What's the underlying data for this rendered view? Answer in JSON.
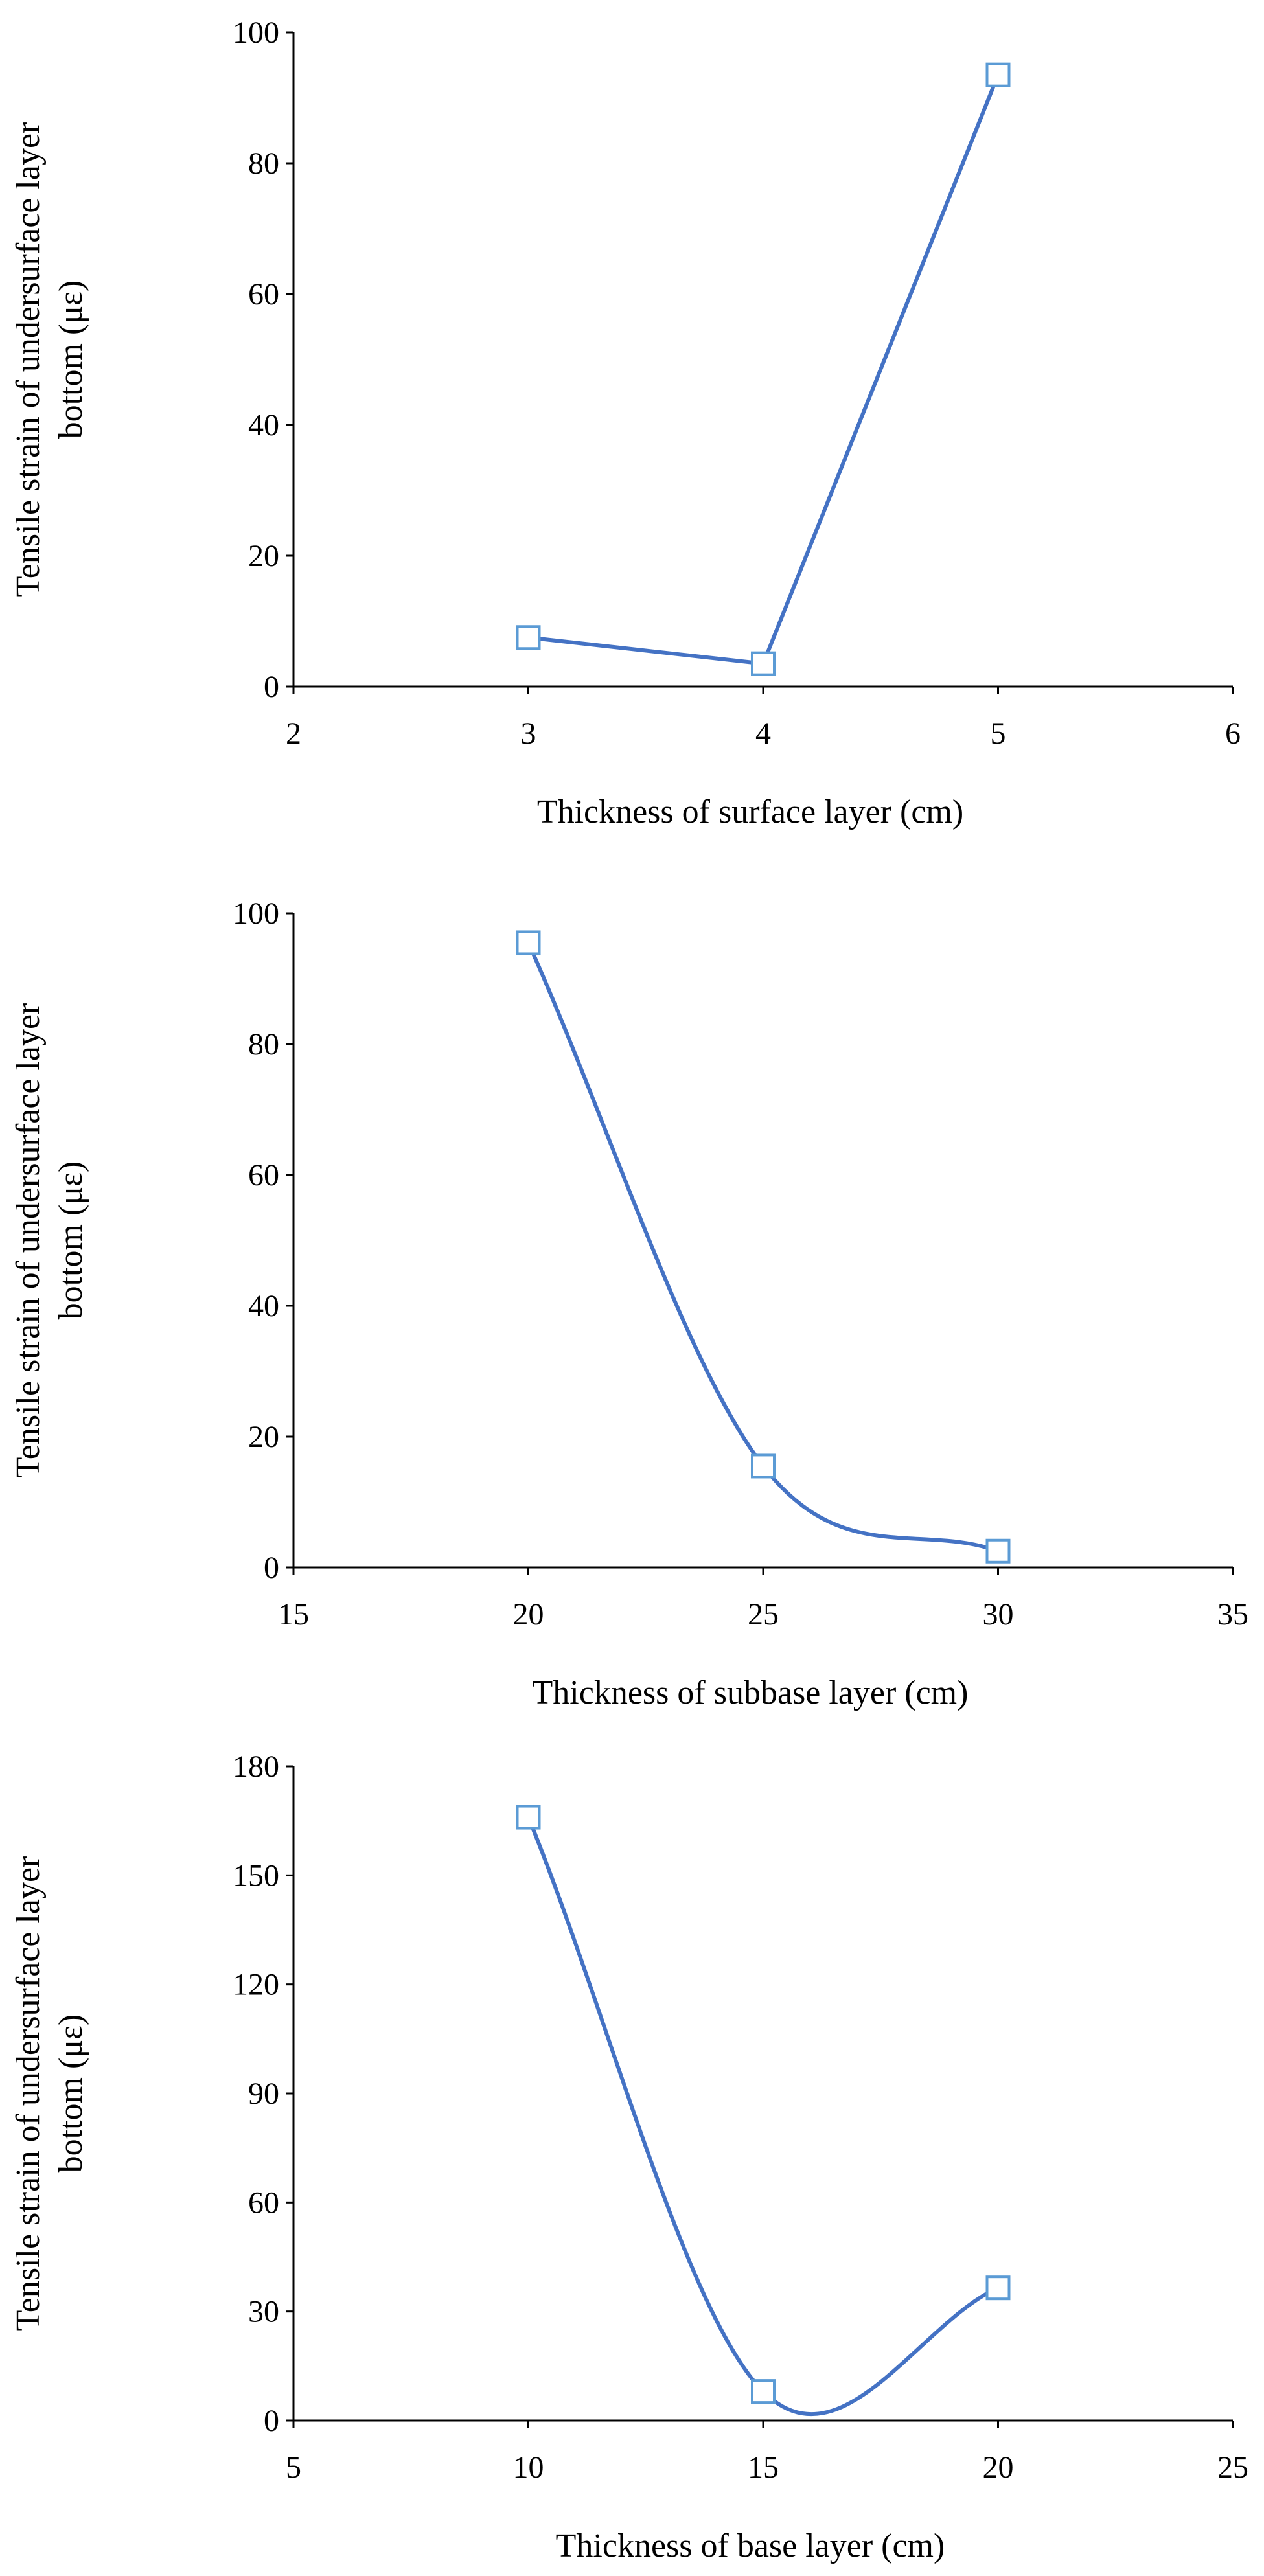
{
  "chart_data": [
    {
      "type": "line",
      "smooth": false,
      "title": "",
      "xlabel": "Thickness of surface layer (cm)",
      "ylabel": "Tensile strain of undersurface layer bottom (με)",
      "ylabel_lines": [
        "Tensile strain of undersurface layer",
        "bottom (με)"
      ],
      "xlim": [
        2,
        6
      ],
      "ylim": [
        0,
        100
      ],
      "xticks": [
        2,
        3,
        4,
        5,
        6
      ],
      "yticks": [
        0,
        20,
        40,
        60,
        80,
        100
      ],
      "x": [
        3,
        4,
        5
      ],
      "series": [
        {
          "name": "Tensile strain",
          "values": [
            7.5,
            3.5,
            93.5
          ]
        }
      ],
      "line_color": "#4472C4",
      "marker_color": "#5B9BD5"
    },
    {
      "type": "line",
      "smooth": true,
      "title": "",
      "xlabel": "Thickness of subbase layer (cm)",
      "ylabel": "Tensile strain of undersurface layer bottom (με)",
      "ylabel_lines": [
        "Tensile strain of undersurface layer",
        "bottom (με)"
      ],
      "xlim": [
        15,
        35
      ],
      "ylim": [
        0,
        100
      ],
      "xticks": [
        15,
        20,
        25,
        30,
        35
      ],
      "yticks": [
        0,
        20,
        40,
        60,
        80,
        100
      ],
      "x": [
        20,
        25,
        30
      ],
      "series": [
        {
          "name": "Tensile strain",
          "values": [
            95.5,
            15.5,
            2.5
          ]
        }
      ],
      "line_color": "#4472C4",
      "marker_color": "#5B9BD5"
    },
    {
      "type": "line",
      "smooth": true,
      "title": "",
      "xlabel": "Thickness of base layer (cm)",
      "ylabel": "Tensile strain of undersurface layer bottom (με)",
      "ylabel_lines": [
        "Tensile strain of undersurface layer",
        "bottom (με)"
      ],
      "xlim": [
        5,
        25
      ],
      "ylim": [
        0,
        180
      ],
      "xticks": [
        5,
        10,
        15,
        20,
        25
      ],
      "yticks": [
        0,
        30,
        60,
        90,
        120,
        150,
        180
      ],
      "x": [
        10,
        15,
        20
      ],
      "series": [
        {
          "name": "Tensile strain",
          "values": [
            166,
            8,
            36.5
          ]
        }
      ],
      "line_color": "#4472C4",
      "marker_color": "#5B9BD5"
    }
  ]
}
